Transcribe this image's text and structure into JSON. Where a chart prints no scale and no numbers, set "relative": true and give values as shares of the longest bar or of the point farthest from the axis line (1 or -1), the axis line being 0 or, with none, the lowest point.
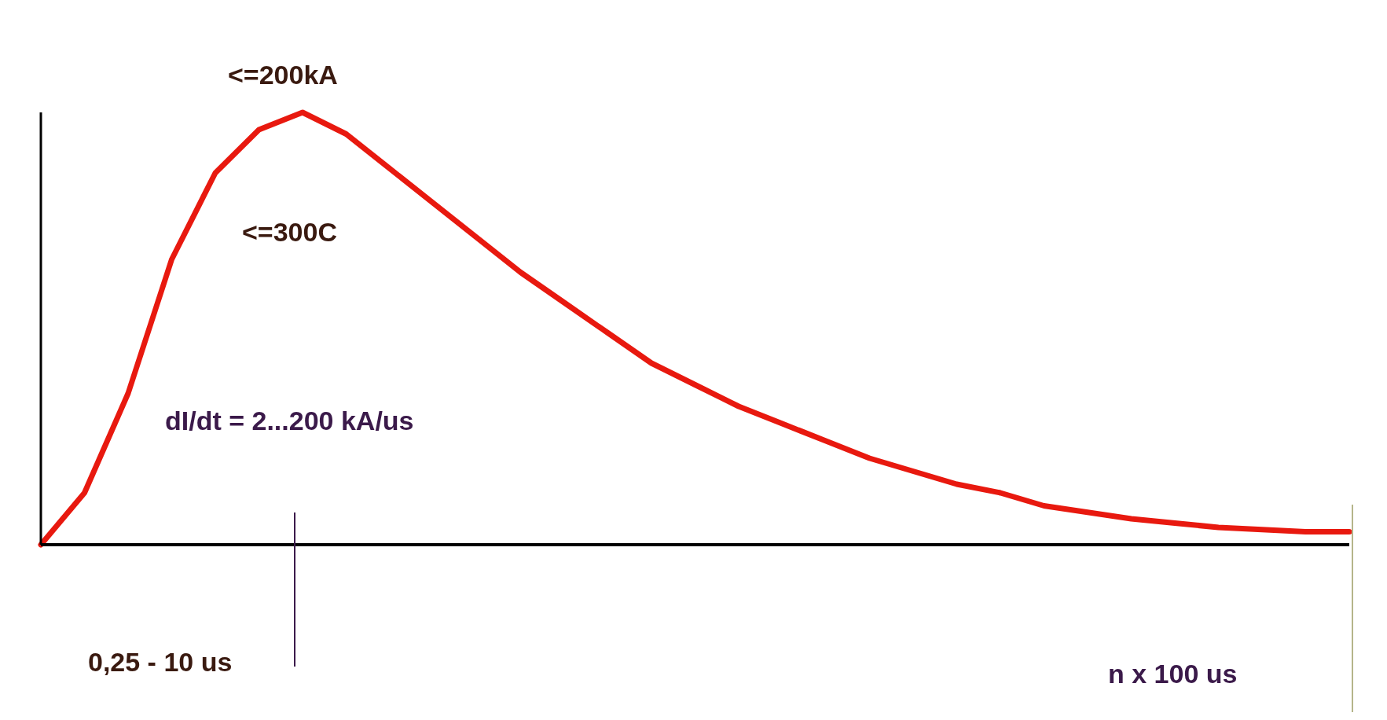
{
  "chart_data": {
    "type": "line",
    "relative": true,
    "marker": "none",
    "line_style": "solid",
    "categories": [
      null,
      null,
      null,
      null,
      null,
      null,
      null,
      null,
      null,
      null,
      null,
      null,
      null,
      null,
      null,
      null,
      null,
      null,
      null,
      null,
      null,
      null,
      null,
      null,
      null,
      null,
      null,
      null,
      null,
      null,
      null
    ],
    "series": [
      {
        "color": "#e8190f",
        "values": [
          0,
          0.12,
          0.35,
          0.66,
          0.86,
          0.96,
          1,
          0.95,
          0.87,
          0.79,
          0.71,
          0.63,
          0.56,
          0.49,
          0.42,
          0.37,
          0.32,
          0.28,
          0.24,
          0.2,
          0.17,
          0.14,
          0.12,
          0.09,
          0.075,
          0.06,
          0.05,
          0.04,
          0.035,
          0.03,
          0.03
        ]
      }
    ],
    "annotations": [
      "<=200kA",
      "<=300C",
      "dI/dt = 2...200 kA/us",
      "0,25 - 10 us",
      "n x 100 us"
    ]
  }
}
